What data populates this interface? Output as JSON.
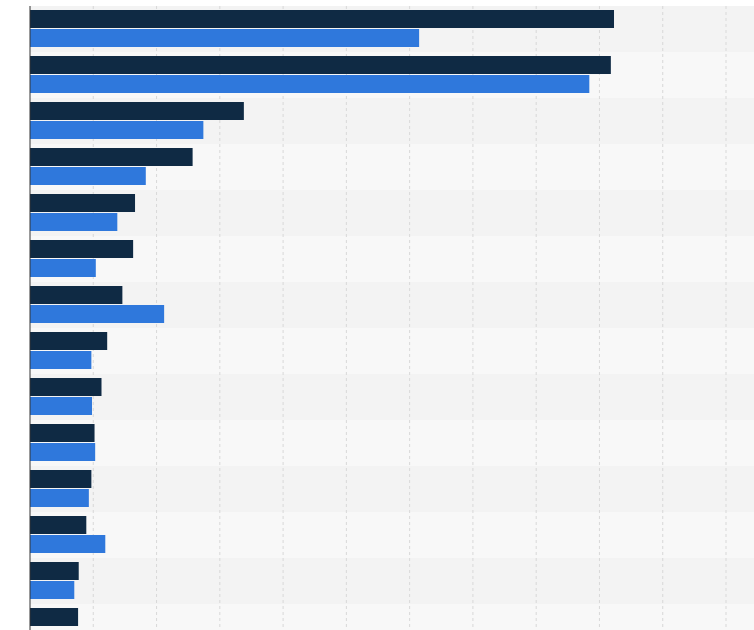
{
  "chart_data": {
    "type": "bar",
    "orientation": "horizontal",
    "categories": [
      "",
      "",
      "",
      "",
      "",
      "",
      "",
      "",
      "",
      "",
      "",
      "",
      "",
      ""
    ],
    "series": [
      {
        "color": "#0f2a44",
        "values": [
          92.3,
          91.8,
          33.8,
          25.7,
          16.6,
          16.3,
          14.6,
          12.2,
          11.3,
          10.2,
          9.7,
          8.9,
          7.7,
          7.6
        ]
      },
      {
        "color": "#2f78dc",
        "values": [
          61.5,
          88.4,
          27.4,
          18.3,
          13.8,
          10.4,
          21.2,
          9.7,
          9.8,
          10.3,
          9.3,
          11.9,
          7.0,
          null
        ]
      }
    ],
    "xlim": [
      0,
      110
    ],
    "x_gridlines": [
      10,
      20,
      30,
      40,
      50,
      60,
      70,
      80,
      90,
      100,
      110
    ],
    "grid": true,
    "legend": "none",
    "colors": {
      "band_a": "#f3f3f3",
      "band_b": "#f8f8f8",
      "grid": "#d8d8d8",
      "axis": "#333333"
    }
  }
}
